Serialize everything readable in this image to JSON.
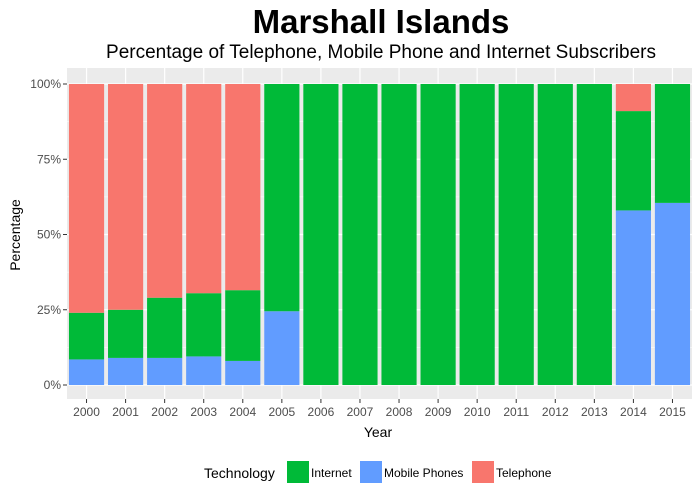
{
  "chart_data": {
    "type": "bar",
    "stacked": true,
    "title": "Marshall Islands",
    "subtitle": "Percentage of Telephone, Mobile Phone and Internet Subscribers",
    "xlabel": "Year",
    "ylabel": "Percentage",
    "ylim": [
      0,
      100
    ],
    "yticks": [
      0,
      25,
      50,
      75,
      100
    ],
    "ytick_labels": [
      "0%",
      "25%",
      "50%",
      "75%",
      "100%"
    ],
    "grid": true,
    "legend_position": "bottom",
    "legend_title": "Technology",
    "categories": [
      "2000",
      "2001",
      "2002",
      "2003",
      "2004",
      "2005",
      "2006",
      "2007",
      "2008",
      "2009",
      "2010",
      "2011",
      "2012",
      "2013",
      "2014",
      "2015"
    ],
    "series": [
      {
        "name": "Mobile Phones",
        "color": "#619CFF",
        "values": [
          8.5,
          9,
          9,
          9.5,
          8,
          24.5,
          0,
          0,
          0,
          0,
          0,
          0,
          0,
          0,
          58,
          60.5
        ]
      },
      {
        "name": "Internet",
        "color": "#00BA38",
        "values": [
          15.5,
          16,
          20,
          21,
          23.5,
          75.5,
          100,
          100,
          100,
          100,
          100,
          100,
          100,
          100,
          33,
          39.5
        ]
      },
      {
        "name": "Telephone",
        "color": "#F8766D",
        "values": [
          76,
          75,
          71,
          69.5,
          68.5,
          0,
          0,
          0,
          0,
          0,
          0,
          0,
          0,
          0,
          9,
          0
        ]
      }
    ],
    "legend_order": [
      "Internet",
      "Mobile Phones",
      "Telephone"
    ]
  }
}
